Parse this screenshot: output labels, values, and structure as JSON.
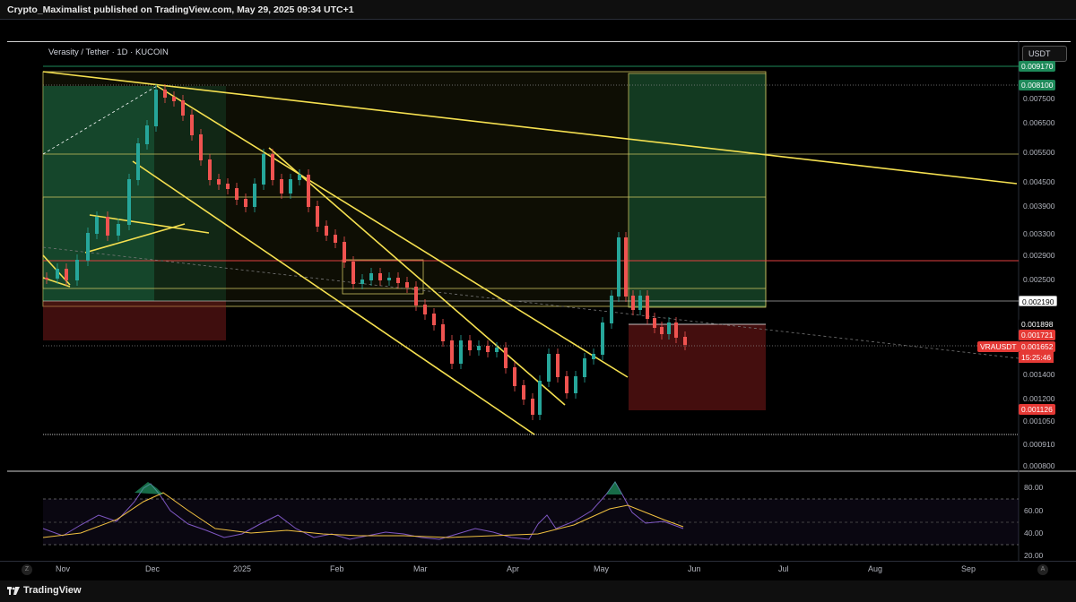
{
  "header": {
    "publisher_line": "Crypto_Maximalist published on TradingView.com, May 29, 2025 09:34 UTC+1"
  },
  "chart": {
    "symbol_line": "Verasity / Tether · 1D · KUCOIN",
    "currency": "USDT",
    "ticker": "VRAUSDT",
    "countdown": "15:25:46"
  },
  "price_scale": {
    "labels": [
      "0.007500",
      "0.006500",
      "0.005500",
      "0.004500",
      "0.003900",
      "0.003300",
      "0.002900",
      "0.002500",
      "0.001400",
      "0.001200",
      "0.001050",
      "0.000910",
      "0.000800"
    ],
    "highlighted": {
      "top_cut": "0.009170",
      "green_target": "0.008100",
      "entry_box": "0.002190",
      "level_a": "0.001898",
      "level_b": "0.001721",
      "last_price": "0.001652",
      "stop": "0.001126"
    }
  },
  "rsi_scale": [
    "80.00",
    "60.00",
    "40.00",
    "20.00"
  ],
  "time_axis": [
    "Nov",
    "Dec",
    "2025",
    "Feb",
    "Mar",
    "Apr",
    "May",
    "Jun",
    "Jul",
    "Aug",
    "Sep"
  ],
  "footer": {
    "brand": "TradingView"
  },
  "icons": {
    "left_corner": "Z",
    "right_corner": "A"
  },
  "colors": {
    "up": "#26a69a",
    "down": "#ef5350",
    "trendline": "#f5e050",
    "rsi": "#7e57c2",
    "rsi_ma": "#f0c040"
  }
}
